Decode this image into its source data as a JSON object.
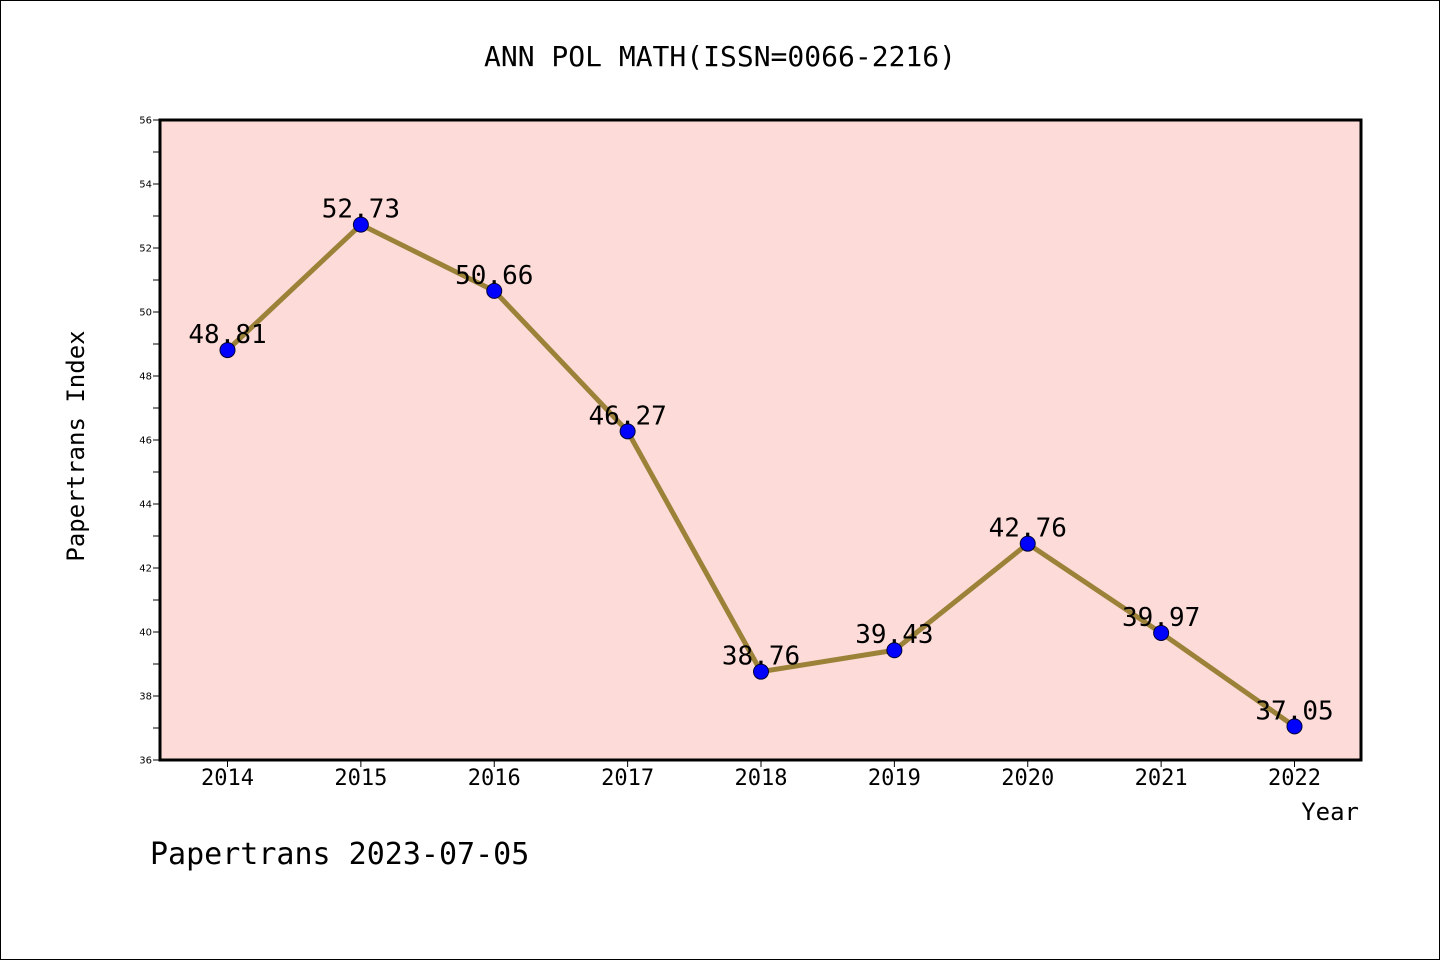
{
  "chart_data": {
    "type": "line",
    "title": "ANN POL MATH(ISSN=0066-2216)",
    "xlabel": "Year",
    "ylabel": "Papertrans Index",
    "categories": [
      "2014",
      "2015",
      "2016",
      "2017",
      "2018",
      "2019",
      "2020",
      "2021",
      "2022"
    ],
    "series": [
      {
        "values": [
          48.81,
          52.73,
          50.66,
          46.27,
          38.76,
          39.43,
          42.76,
          39.97,
          37.05
        ],
        "labels": [
          "48.81",
          "52.73",
          "50.66",
          "46.27",
          "38.76",
          "39.43",
          "42.76",
          "39.97",
          "37.05"
        ]
      }
    ],
    "ylim": [
      36,
      56
    ],
    "yticks": [
      "36",
      "38",
      "40",
      "42",
      "44",
      "46",
      "48",
      "50",
      "52",
      "54",
      "56"
    ],
    "grid": false,
    "colors": {
      "plot_background": "#fddbd8",
      "line": "#9b8238",
      "marker": "#0000ff"
    }
  },
  "footer": {
    "watermark": "Papertrans 2023-07-05"
  }
}
